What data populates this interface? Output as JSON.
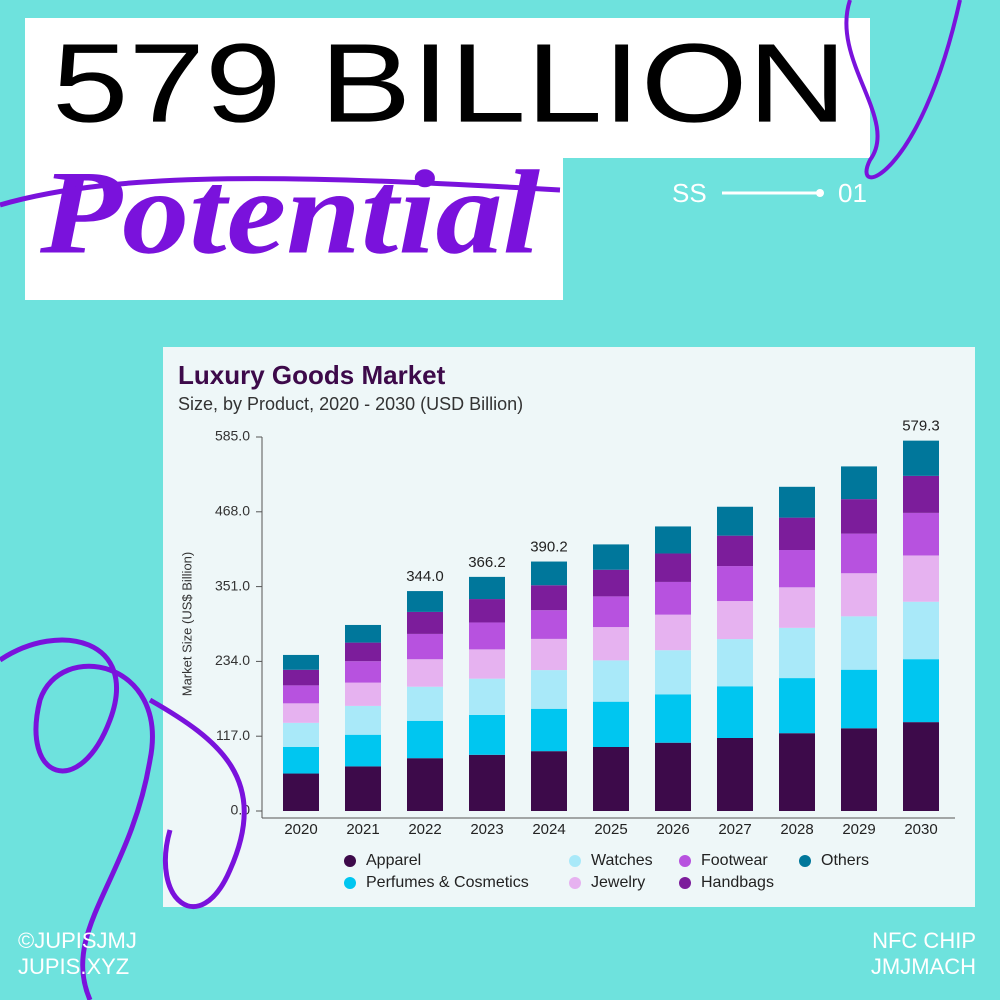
{
  "header": {
    "headline": "579 BILLION",
    "script_word": "Potential",
    "series_code": "SS",
    "series_number": "01"
  },
  "footer": {
    "left": [
      "©JUPISJMJ",
      "JUPIS.XYZ"
    ],
    "right": [
      "NFC CHIP",
      "JMJMACH"
    ]
  },
  "chart_data": {
    "type": "stacked_bar",
    "title": "Luxury Goods Market",
    "subtitle": "Size, by Product, 2020 - 2030 (USD Billion)",
    "y_label": "Market Size (US$ Billion)",
    "categories": [
      "2020",
      "2021",
      "2022",
      "2023",
      "2024",
      "2025",
      "2026",
      "2027",
      "2028",
      "2029",
      "2030"
    ],
    "series": [
      {
        "name": "Apparel",
        "color": "#3d0a4a",
        "values": [
          58.6,
          69.8,
          82.6,
          87.9,
          93.6,
          100.1,
          106.8,
          114.2,
          121.7,
          129.4,
          139.0
        ]
      },
      {
        "name": "Perfumes & Cosmetics",
        "color": "#00c6f0",
        "values": [
          41.5,
          49.5,
          58.5,
          62.3,
          66.3,
          70.9,
          75.7,
          80.9,
          86.2,
          91.6,
          98.5
        ]
      },
      {
        "name": "Watches",
        "color": "#a9e9f9",
        "values": [
          37.8,
          45.1,
          53.3,
          56.8,
          60.5,
          64.6,
          69.0,
          73.8,
          78.6,
          83.5,
          89.8
        ]
      },
      {
        "name": "Jewelry",
        "color": "#e6b2f0",
        "values": [
          30.5,
          36.4,
          43.0,
          45.8,
          48.8,
          52.1,
          55.6,
          59.5,
          63.4,
          67.4,
          72.4
        ]
      },
      {
        "name": "Footwear",
        "color": "#b752df",
        "values": [
          28.1,
          33.5,
          39.6,
          42.1,
          44.9,
          48.0,
          51.2,
          54.7,
          58.3,
          62.0,
          66.6
        ]
      },
      {
        "name": "Handbags",
        "color": "#7c1d9b",
        "values": [
          24.4,
          29.1,
          34.4,
          36.6,
          39.0,
          41.7,
          44.5,
          47.6,
          50.7,
          53.9,
          57.9
        ]
      },
      {
        "name": "Others",
        "color": "#00779b",
        "values": [
          23.2,
          27.6,
          32.6,
          34.7,
          37.1,
          39.6,
          42.3,
          45.2,
          48.2,
          51.2,
          55.1
        ]
      }
    ],
    "totals": [
      null,
      null,
      344.0,
      366.2,
      390.2,
      null,
      null,
      null,
      null,
      null,
      579.3
    ],
    "total_labels": [
      null,
      null,
      "344.0",
      "366.2",
      "390.2",
      null,
      null,
      null,
      null,
      null,
      "579.3"
    ],
    "ylim": [
      0,
      585
    ],
    "yticks": [
      {
        "value": 0,
        "label": "0.0"
      },
      {
        "value": 117,
        "label": "117.0"
      },
      {
        "value": 234,
        "label": "234.0"
      },
      {
        "value": 351,
        "label": "351.0"
      },
      {
        "value": 468,
        "label": "468.0"
      },
      {
        "value": 585,
        "label": "585.0"
      }
    ],
    "grid": false,
    "legend": "bottom"
  }
}
